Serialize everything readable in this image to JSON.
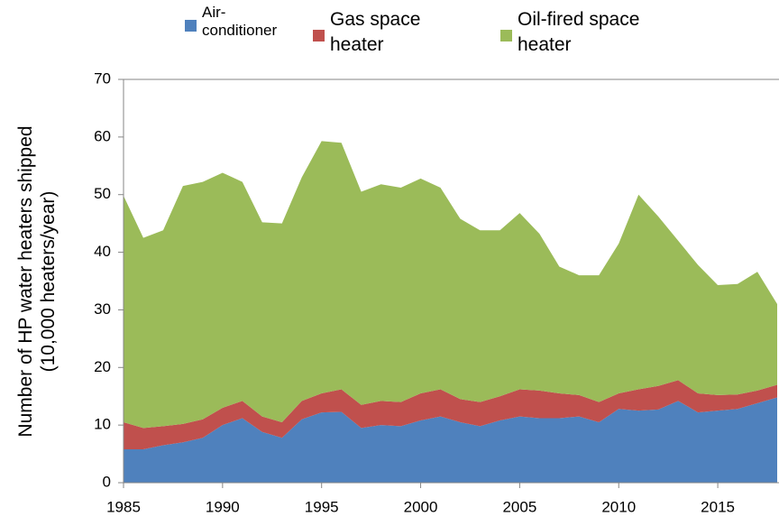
{
  "chart_data": {
    "type": "stacked_area",
    "y_label": "Number of HP water heaters shipped (10,000 heaters/year)",
    "x": [
      1985,
      1986,
      1987,
      1988,
      1989,
      1990,
      1991,
      1992,
      1993,
      1994,
      1995,
      1996,
      1997,
      1998,
      1999,
      2000,
      2001,
      2002,
      2003,
      2004,
      2005,
      2006,
      2007,
      2008,
      2009,
      2010,
      2011,
      2012,
      2013,
      2014,
      2015,
      2016,
      2017,
      2018
    ],
    "series": [
      {
        "name": "Air-conditioner",
        "color": "#4f81bd",
        "values": [
          5.8,
          5.8,
          6.5,
          7.0,
          7.8,
          10.0,
          11.2,
          8.8,
          7.8,
          11.0,
          12.2,
          12.3,
          9.5,
          10.0,
          9.8,
          10.8,
          11.5,
          10.5,
          9.8,
          10.8,
          11.5,
          11.2,
          11.2,
          11.5,
          10.5,
          12.8,
          12.5,
          12.7,
          14.2,
          12.2,
          12.5,
          12.8,
          13.8,
          14.8
        ]
      },
      {
        "name": "Gas space heater",
        "color": "#c0504d",
        "values": [
          4.7,
          3.7,
          3.3,
          3.2,
          3.2,
          3.0,
          3.0,
          2.7,
          2.7,
          3.2,
          3.3,
          3.9,
          4.0,
          4.2,
          4.2,
          4.7,
          4.7,
          4.0,
          4.2,
          4.2,
          4.7,
          4.8,
          4.3,
          3.7,
          3.5,
          2.7,
          3.7,
          4.1,
          3.6,
          3.3,
          2.7,
          2.5,
          2.2,
          2.2
        ]
      },
      {
        "name": "Oil-fired space heater",
        "color": "#9bbb59",
        "values": [
          39.3,
          33.0,
          34.0,
          41.3,
          41.2,
          40.8,
          38.0,
          33.7,
          34.5,
          38.8,
          43.8,
          42.8,
          37.0,
          37.6,
          37.2,
          37.3,
          35.0,
          31.3,
          29.8,
          28.8,
          30.6,
          27.2,
          22.0,
          20.8,
          22.0,
          26.0,
          33.8,
          29.4,
          24.2,
          22.3,
          19.1,
          19.2,
          20.6,
          14.0
        ]
      }
    ],
    "xlim": [
      1985,
      2018
    ],
    "xticks": [
      1985,
      1990,
      1995,
      2000,
      2005,
      2010,
      2015
    ],
    "ylim": [
      0,
      70
    ],
    "yticks": [
      0,
      10,
      20,
      30,
      40,
      50,
      60,
      70
    ]
  }
}
